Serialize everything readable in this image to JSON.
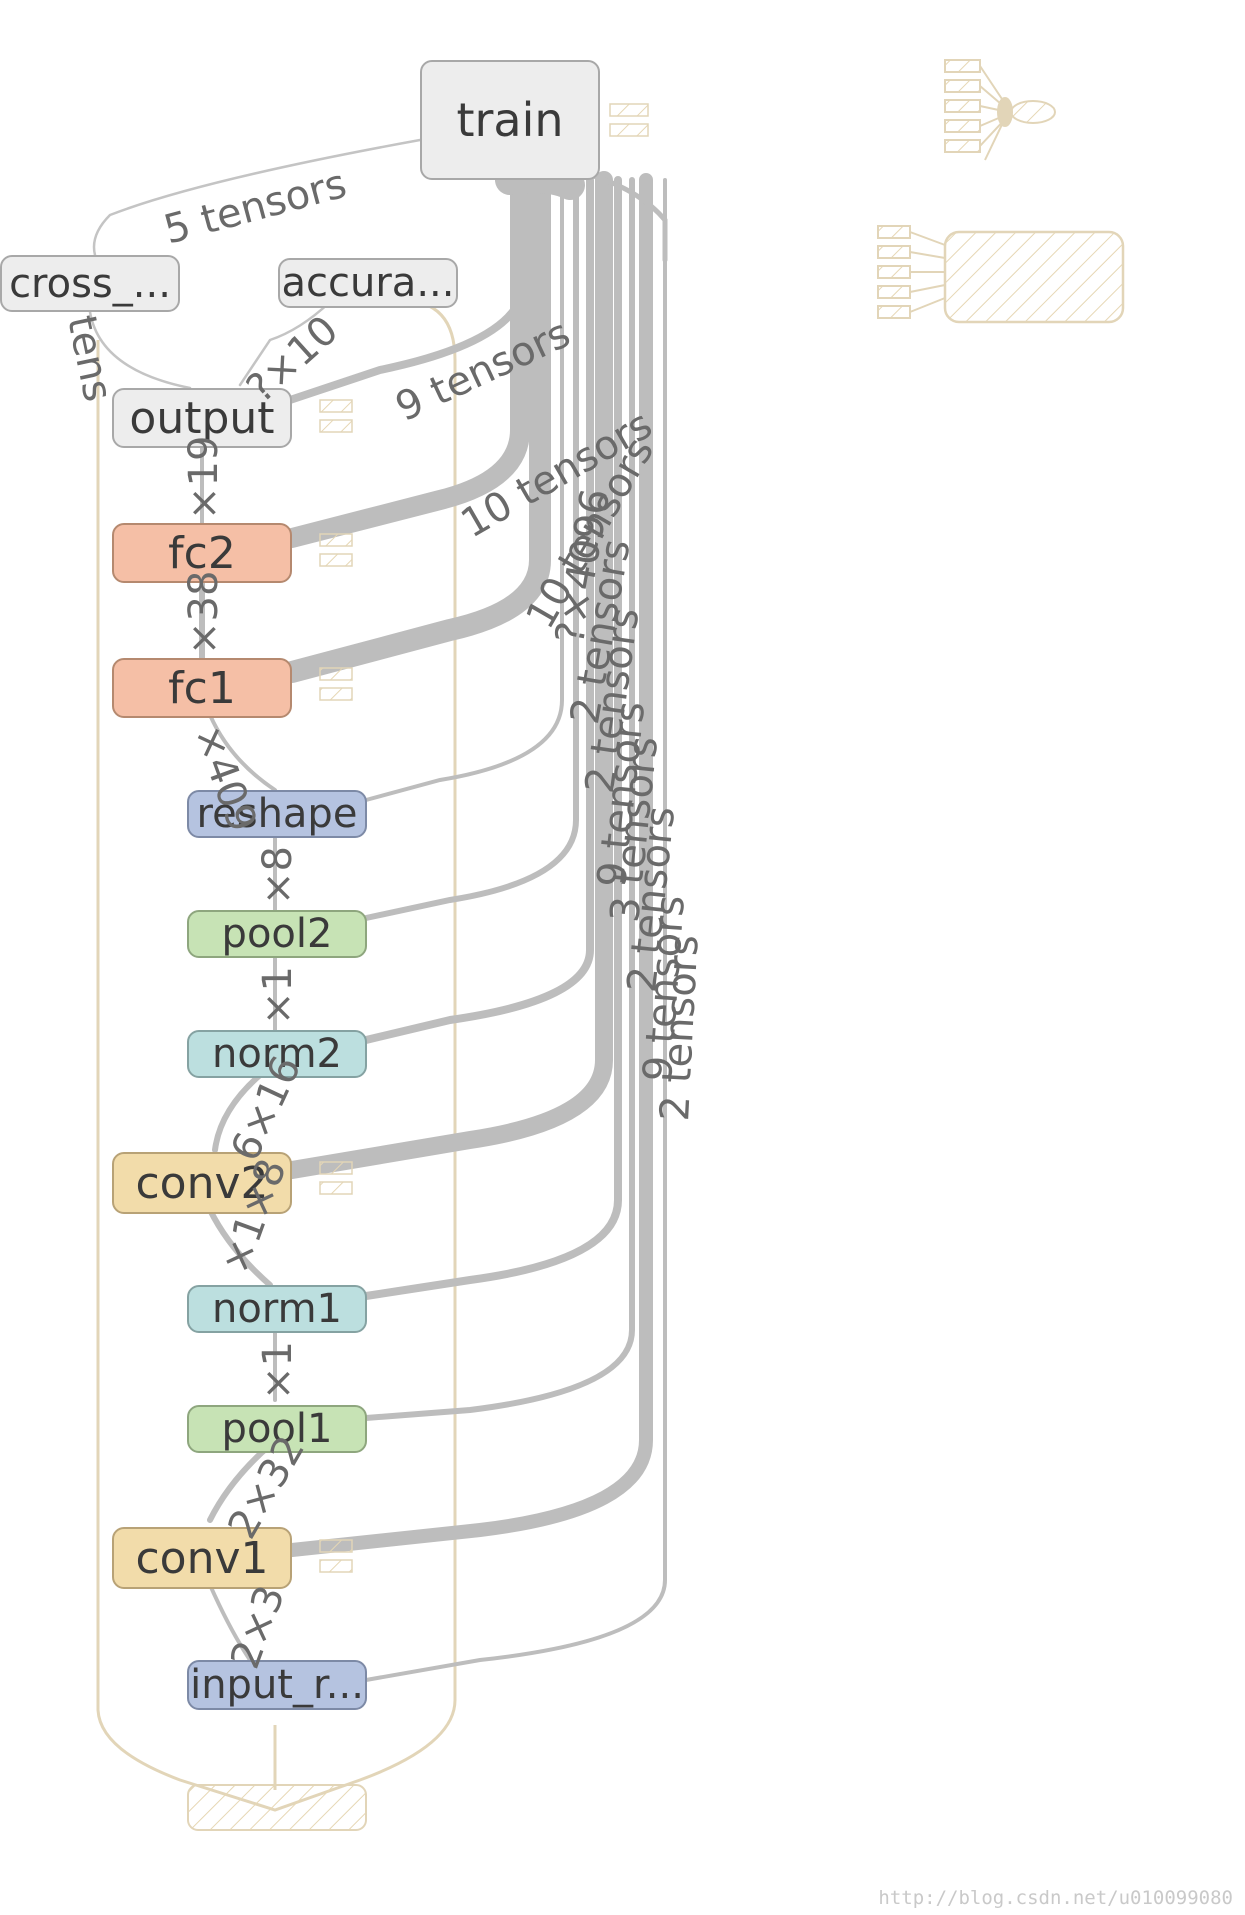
{
  "nodes": {
    "train": "train",
    "cross": "cross_...",
    "accura": "accura...",
    "output": "output",
    "fc2": "fc2",
    "fc1": "fc1",
    "reshape": "reshape",
    "pool2": "pool2",
    "norm2": "norm2",
    "conv2": "conv2",
    "norm1": "norm1",
    "pool1": "pool1",
    "conv1": "conv1",
    "input": "input_r..."
  },
  "edge_labels": {
    "train_cross": "5 tensors",
    "cross_output": "tens",
    "accura_output": "?×10",
    "train_output": "9 tensors",
    "train_fc2": "10 tensors",
    "train_fc1": "10 tensors",
    "output_fc2": "×19",
    "fc2_fc1": "×38",
    "fc1_reshape": "×409",
    "reshape_pool2": "×8",
    "pool2_norm2": "×1",
    "norm2_conv2": "6×16",
    "conv2_norm1": "×1×8",
    "norm1_pool1": "×1",
    "pool1_conv1": "2×32",
    "conv1_input": "2×3",
    "right_1": "?×4096",
    "right_2": "2 tensors",
    "right_3": "2 tensors",
    "right_4": "9 tensors",
    "right_5": "3 tensors",
    "right_6": "2 tensors",
    "right_7": "9 tensors",
    "right_8": "2 tensors"
  },
  "watermark": "http://blog.csdn.net/u010099080",
  "colors": {
    "edge": "#bdbdbd",
    "group_outline": "#e2d5b8",
    "fc": "#f5bfa6",
    "conv": "#f2dcaa",
    "pool": "#c7e3b5",
    "norm": "#bcdfdf",
    "reshape_input": "#b5c3e0",
    "default": "#ededed"
  }
}
